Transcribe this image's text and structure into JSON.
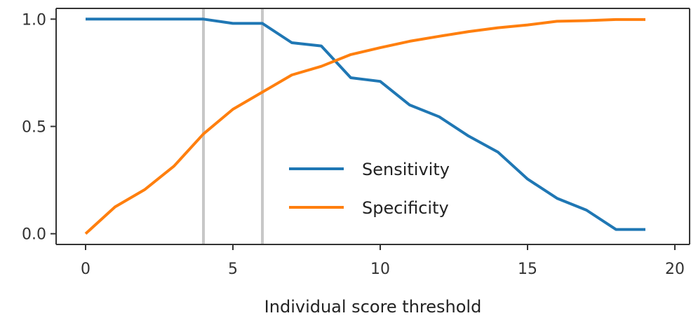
{
  "chart_data": {
    "type": "line",
    "xlabel": "Individual score threshold",
    "ylabel": "",
    "xlim": [
      -1,
      20.5
    ],
    "ylim": [
      -0.05,
      1.05
    ],
    "x_ticks": [
      0,
      5,
      10,
      15,
      20
    ],
    "x_tick_labels": [
      "0",
      "5",
      "10",
      "15",
      "20"
    ],
    "y_ticks": [
      0.0,
      0.5,
      1.0
    ],
    "y_tick_labels": [
      "0.0",
      "0.5",
      "1.0"
    ],
    "grid": false,
    "legend_position": "center-right",
    "vertical_lines": [
      4,
      6
    ],
    "x": [
      0,
      1,
      2,
      3,
      4,
      5,
      6,
      7,
      8,
      9,
      10,
      11,
      12,
      13,
      14,
      15,
      16,
      17,
      18,
      19
    ],
    "series": [
      {
        "name": "Sensitivity",
        "color": "#1f77b4",
        "values": [
          1.0,
          1.0,
          1.0,
          1.0,
          1.0,
          0.98,
          0.98,
          0.89,
          0.875,
          0.727,
          0.71,
          0.6,
          0.545,
          0.455,
          0.38,
          0.255,
          0.165,
          0.11,
          0.02,
          0.02
        ]
      },
      {
        "name": "Specificity",
        "color": "#ff7f0e",
        "values": [
          0.0,
          0.125,
          0.205,
          0.315,
          0.465,
          0.58,
          0.66,
          0.74,
          0.78,
          0.835,
          0.867,
          0.897,
          0.92,
          0.942,
          0.96,
          0.973,
          0.99,
          0.993,
          0.998,
          0.998
        ]
      }
    ],
    "vline_color": "#c7c7c7",
    "axis_color": "#333333"
  }
}
